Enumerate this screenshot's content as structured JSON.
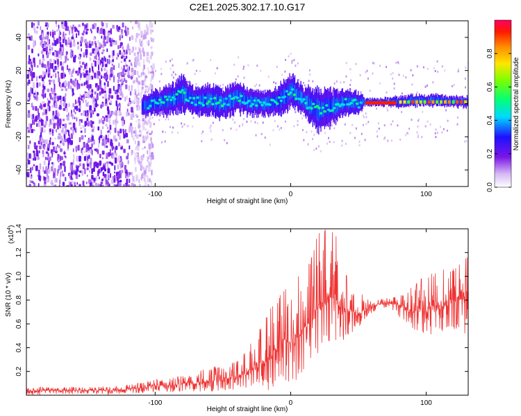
{
  "title": "C2E1.2025.302.17.10.G17",
  "chart_data": [
    {
      "type": "heatmap",
      "name": "spectrogram",
      "xlabel": "Height of straight line (km)",
      "ylabel": "Frequency (Hz)",
      "xlim": [
        -195,
        131
      ],
      "ylim": [
        -50,
        50
      ],
      "xticks": [
        -100,
        0,
        100
      ],
      "xtick_labels": [
        "-100",
        "0",
        "100"
      ],
      "yticks": [
        -40,
        -20,
        0,
        20,
        40
      ],
      "ytick_labels": [
        "-40",
        "-20",
        "0",
        "20",
        "40"
      ],
      "colorbar": {
        "label": "Normalized spectral amplitude",
        "range": [
          0,
          1
        ],
        "ticks": [
          0.0,
          0.2,
          0.4,
          0.6,
          0.8
        ],
        "tick_labels": [
          "0.0",
          "0.2",
          "0.4",
          "0.6",
          "0.8"
        ]
      },
      "noise_region_x": [
        -195,
        -108
      ],
      "signal_band": {
        "x": [
          -110,
          -100,
          -90,
          -80,
          -70,
          -60,
          -50,
          -40,
          -30,
          -20,
          -10,
          -2,
          0,
          10,
          20,
          30,
          40,
          50,
          55,
          60,
          70,
          80,
          90,
          100,
          110,
          120,
          131
        ],
        "center_hz": [
          -2,
          1,
          2,
          6,
          1,
          2,
          0,
          4,
          1,
          0,
          1,
          6,
          8,
          1,
          -4,
          -2,
          1,
          0,
          1,
          1,
          1,
          1,
          2,
          2,
          2,
          1,
          1
        ],
        "halfwidth_hz": [
          6,
          7,
          8,
          10,
          7,
          9,
          8,
          9,
          7,
          7,
          8,
          10,
          9,
          8,
          12,
          10,
          7,
          6,
          2,
          2,
          2,
          3,
          3,
          3,
          3,
          3,
          3
        ]
      }
    },
    {
      "type": "line",
      "name": "snr",
      "xlabel": "Height of straight line (km)",
      "ylabel": "SNR (10 * v/v)",
      "yscale_label": "(x10",
      "yscale_exponent": "4",
      "xlim": [
        -195,
        131
      ],
      "ylim": [
        0,
        1.4
      ],
      "xticks": [
        -100,
        0,
        100
      ],
      "xtick_labels": [
        "-100",
        "0",
        "100"
      ],
      "yticks": [
        0.2,
        0.4,
        0.6,
        0.8,
        1.0,
        1.2,
        1.4
      ],
      "ytick_labels": [
        "0.2",
        "0.4",
        "0.6",
        "0.8",
        "1.0",
        "1.2",
        "1.4"
      ],
      "color": "#ee3333",
      "x": [
        -195,
        -180,
        -160,
        -140,
        -120,
        -110,
        -100,
        -90,
        -80,
        -70,
        -60,
        -50,
        -40,
        -30,
        -25,
        -20,
        -15,
        -10,
        -5,
        0,
        5,
        10,
        15,
        20,
        25,
        30,
        35,
        40,
        45,
        50,
        55,
        60,
        70,
        80,
        90,
        100,
        110,
        120,
        131
      ],
      "mean": [
        0.04,
        0.04,
        0.04,
        0.04,
        0.05,
        0.06,
        0.08,
        0.08,
        0.1,
        0.1,
        0.12,
        0.14,
        0.15,
        0.2,
        0.25,
        0.28,
        0.32,
        0.4,
        0.45,
        0.45,
        0.5,
        0.55,
        0.6,
        0.72,
        0.8,
        0.82,
        0.8,
        0.72,
        0.7,
        0.68,
        0.72,
        0.75,
        0.78,
        0.76,
        0.7,
        0.72,
        0.75,
        0.8,
        0.85
      ],
      "max": [
        0.08,
        0.07,
        0.07,
        0.07,
        0.09,
        0.12,
        0.14,
        0.14,
        0.18,
        0.18,
        0.25,
        0.25,
        0.3,
        0.45,
        0.55,
        0.6,
        0.75,
        0.8,
        0.9,
        0.95,
        1.0,
        1.05,
        1.15,
        1.38,
        1.4,
        1.4,
        1.35,
        1.05,
        0.95,
        0.9,
        0.85,
        0.82,
        0.82,
        0.85,
        0.95,
        1.02,
        1.05,
        1.08,
        1.2
      ],
      "min": [
        0.0,
        0.0,
        0.0,
        0.0,
        0.0,
        0.02,
        0.02,
        0.02,
        0.03,
        0.03,
        0.03,
        0.04,
        0.04,
        0.06,
        0.08,
        0.1,
        0.12,
        0.15,
        0.15,
        0.15,
        0.2,
        0.25,
        0.3,
        0.35,
        0.4,
        0.45,
        0.45,
        0.5,
        0.55,
        0.6,
        0.68,
        0.7,
        0.72,
        0.66,
        0.55,
        0.5,
        0.55,
        0.55,
        0.5
      ]
    }
  ]
}
